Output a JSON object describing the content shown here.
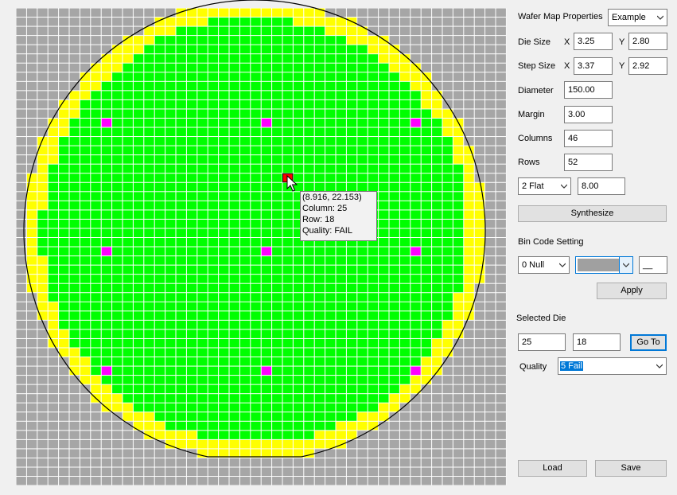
{
  "wafer": {
    "columns": 46,
    "rows": 52,
    "colors": {
      "background": "#f0f0f0",
      "outside_die": "#a6a6a6",
      "edge_die": "#ffff00",
      "good_die": "#00ff00",
      "fail_die": "#ff0000",
      "marker_die": "#ff00ff",
      "grid_line": "#ffffff",
      "outline": "#000000"
    },
    "tooltip": {
      "coords": "(8.916, 22.153)",
      "column": "Column: 25",
      "row": "Row: 18",
      "quality": "Quality: FAIL"
    }
  },
  "properties": {
    "title": "Wafer Map Properties",
    "preset": "Example",
    "die_size_label": "Die Size",
    "step_size_label": "Step Size",
    "x_label": "X",
    "y_label": "Y",
    "die_size_x": "3.25",
    "die_size_y": "2.80",
    "step_size_x": "3.37",
    "step_size_y": "2.92",
    "diameter_label": "Diameter",
    "diameter": "150.00",
    "margin_label": "Margin",
    "margin": "3.00",
    "columns_label": "Columns",
    "columns": "46",
    "rows_label": "Rows",
    "rows": "52",
    "flat_type": "2 Flat",
    "flat_value": "8.00",
    "synthesize_button": "Synthesize"
  },
  "bin_code": {
    "title": "Bin Code Setting",
    "bin": "0 Null",
    "color": "#a0a0a0",
    "symbol": "__",
    "apply_button": "Apply"
  },
  "selected_die": {
    "title": "Selected Die",
    "column": "25",
    "row": "18",
    "goto_button": "Go To",
    "quality_label": "Quality",
    "quality": "5 Fail"
  },
  "footer": {
    "load_button": "Load",
    "save_button": "Save"
  }
}
